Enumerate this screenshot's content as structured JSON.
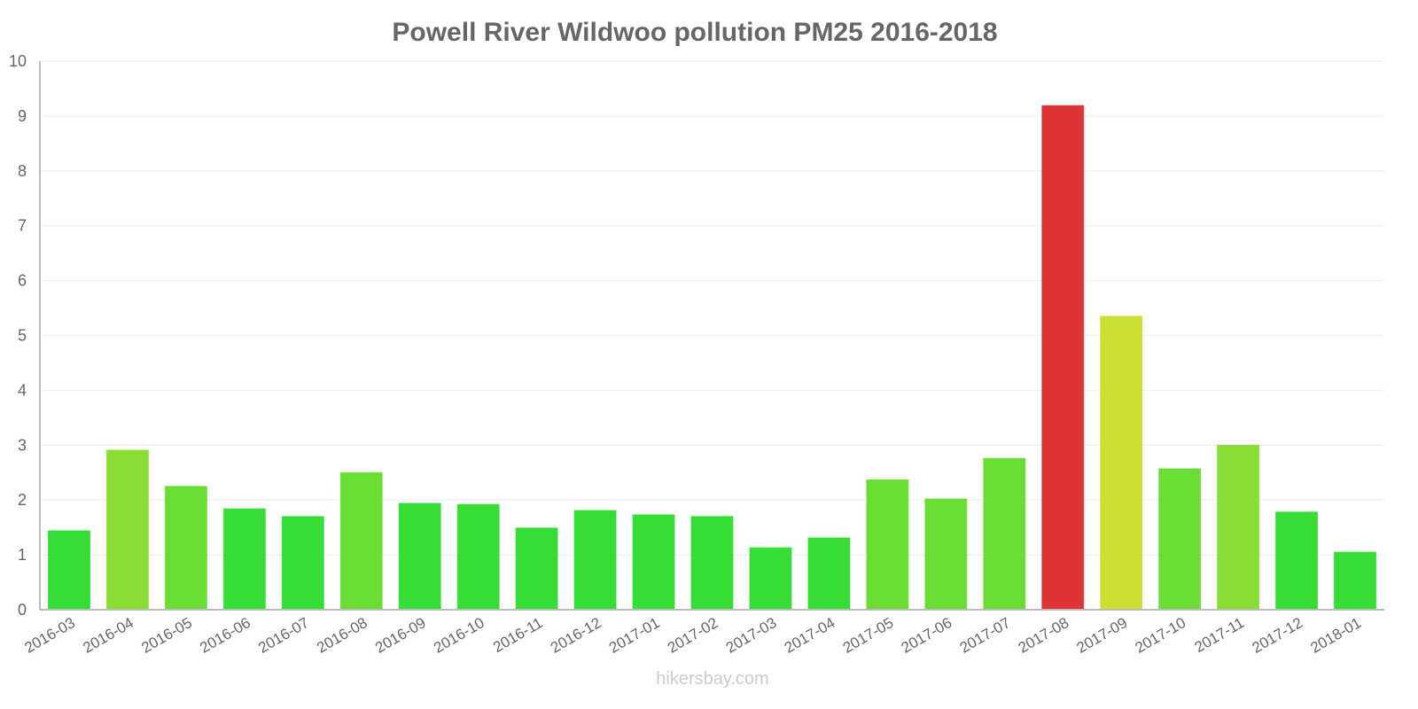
{
  "footer": "hikersbay.com",
  "chart_data": {
    "type": "bar",
    "title": "Powell River Wildwoo pollution PM25 2016-2018",
    "xlabel": "",
    "ylabel": "",
    "ylim": [
      0,
      10
    ],
    "yticks": [
      "0",
      "1",
      "2",
      "3",
      "4",
      "5",
      "6",
      "7",
      "8",
      "9",
      "10"
    ],
    "grid": true,
    "legend": "none",
    "categories": [
      "2016-03",
      "2016-04",
      "2016-05",
      "2016-06",
      "2016-07",
      "2016-08",
      "2016-09",
      "2016-10",
      "2016-11",
      "2016-12",
      "2017-01",
      "2017-02",
      "2017-03",
      "2017-04",
      "2017-05",
      "2017-06",
      "2017-07",
      "2017-08",
      "2017-09",
      "2017-10",
      "2017-11",
      "2017-12",
      "2018-01"
    ],
    "values": [
      1.44,
      2.91,
      2.25,
      1.84,
      1.7,
      2.5,
      1.94,
      1.92,
      1.49,
      1.81,
      1.73,
      1.7,
      1.13,
      1.31,
      2.37,
      2.02,
      2.76,
      9.19,
      5.35,
      2.57,
      3.0,
      1.78,
      1.05
    ],
    "colors": [
      "#35dd35",
      "#8add35",
      "#6add35",
      "#35dd35",
      "#35dd35",
      "#6add35",
      "#35dd35",
      "#35dd35",
      "#35dd35",
      "#35dd35",
      "#35dd35",
      "#35dd35",
      "#35dd35",
      "#35dd35",
      "#6add35",
      "#6add35",
      "#6add35",
      "#dd3535",
      "#ccdd33",
      "#6add35",
      "#8add35",
      "#35dd35",
      "#35dd35"
    ]
  }
}
